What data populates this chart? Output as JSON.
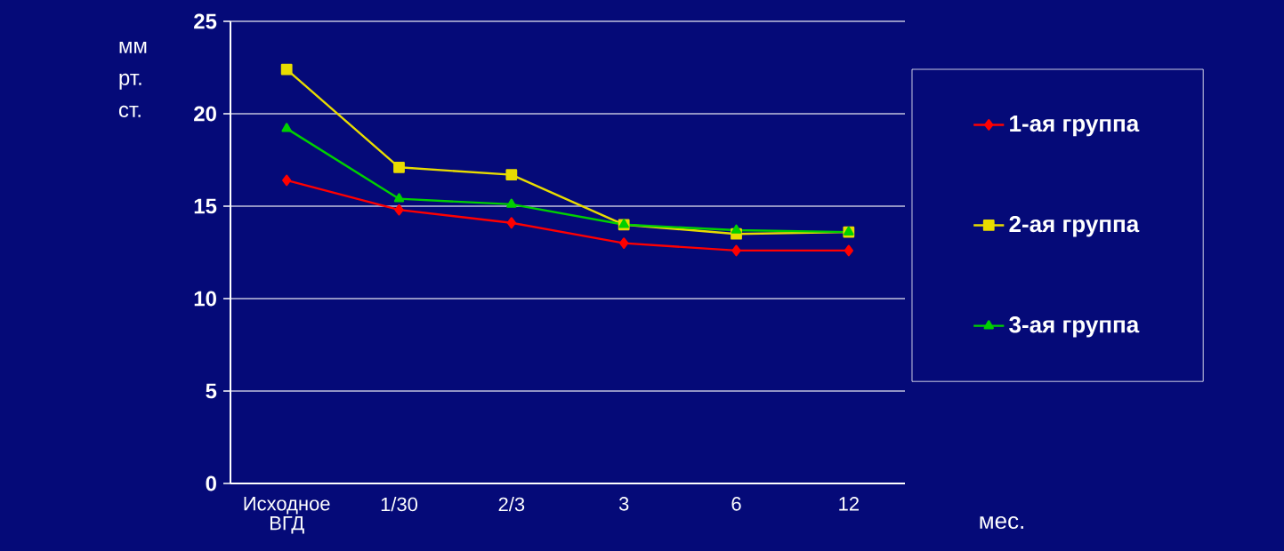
{
  "chart_data": {
    "type": "line",
    "ylabel": "мм рт. ст.",
    "xlabel": "мес.",
    "categories": [
      "Исходное ВГД",
      "1/30",
      "2/3",
      "3",
      "6",
      "12"
    ],
    "series": [
      {
        "name": "1-ая группа",
        "color": "#ff0000",
        "marker": "diamond",
        "values": [
          16.4,
          14.8,
          14.1,
          13.0,
          12.6,
          12.6
        ]
      },
      {
        "name": "2-ая группа",
        "color": "#e8dc00",
        "marker": "square",
        "values": [
          22.4,
          17.1,
          16.7,
          14.0,
          13.5,
          13.6
        ]
      },
      {
        "name": "3-ая группа",
        "color": "#00d000",
        "marker": "triangle",
        "values": [
          19.2,
          15.4,
          15.1,
          14.0,
          13.7,
          13.6
        ]
      }
    ],
    "ylim": [
      0,
      25
    ],
    "yticks": [
      0,
      5,
      10,
      15,
      20,
      25
    ],
    "grid": "y",
    "legend": "right"
  }
}
